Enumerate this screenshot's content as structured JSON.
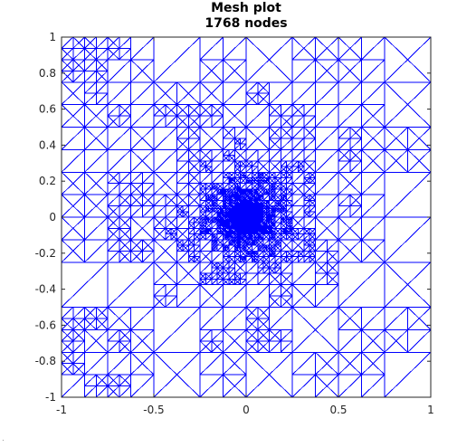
{
  "chart_data": {
    "type": "mesh",
    "title": "Mesh plot",
    "subtitle": "1768 nodes",
    "xlim": [
      -1,
      1
    ],
    "ylim": [
      -1,
      1
    ],
    "x_ticks": [
      -1,
      -0.5,
      0,
      0.5,
      1
    ],
    "y_ticks": [
      -1,
      -0.8,
      -0.6,
      -0.4,
      -0.2,
      0,
      0.2,
      0.4,
      0.6,
      0.8,
      1
    ],
    "x_tick_labels": [
      "-1",
      "-0.5",
      "0",
      "0.5",
      "1"
    ],
    "y_tick_labels": [
      "-1",
      "-0.8",
      "-0.6",
      "-0.4",
      "-0.2",
      "0",
      "0.2",
      "0.4",
      "0.6",
      "0.8",
      "1"
    ],
    "node_count": 1768,
    "refinement_center": [
      0,
      0
    ],
    "line_color": "#0000ff",
    "grid": false,
    "legend": "none"
  },
  "stray_mark": "·"
}
